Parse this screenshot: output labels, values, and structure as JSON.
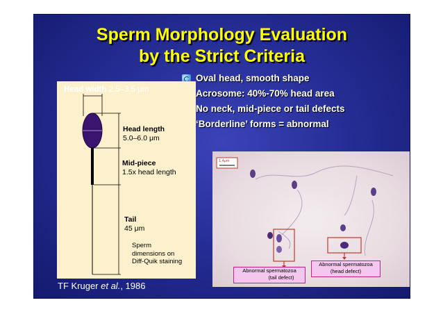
{
  "slide": {
    "title_line1": "Sperm Morphology Evaluation",
    "title_line2": "by the Strict Criteria",
    "bullets": [
      "Oval head, smooth shape",
      "Acrosome: 40%-70% head area",
      "No neck, mid-piece or tail defects",
      "‘Borderline’ forms = abnormal"
    ],
    "bullet_icon": "globe-icon",
    "credit_prefix": "TF Kruger ",
    "credit_etal": "et al.",
    "credit_year": ", 1986",
    "colors": {
      "title": "#ffff00",
      "background": "#262e97",
      "diagram_bg": "#fcf1cc",
      "head": "#3b1470",
      "label_box": "#f4c8ee",
      "label_border": "#c4208a"
    }
  },
  "diagram": {
    "head_width_label": "Head width",
    "head_width_value": "2.5–3.5 μm",
    "head_length_label": "Head length",
    "head_length_value": "5.0–6.0  μm",
    "midpiece_label": "Mid-piece",
    "midpiece_value": "1.5x head length",
    "tail_label": "Tail",
    "tail_value": "45 μm",
    "note_line1": "Sperm",
    "note_line2": "dimensions on",
    "note_line3": "Diff-Quik staining"
  },
  "photo": {
    "scale_bar": "1.4μm",
    "label_tail_line1": "Abnormal spermatozoa",
    "label_tail_line2": "(tail defect)",
    "label_head_line1": "Abnormal spermatozoa",
    "label_head_line2": "(head defect)"
  }
}
